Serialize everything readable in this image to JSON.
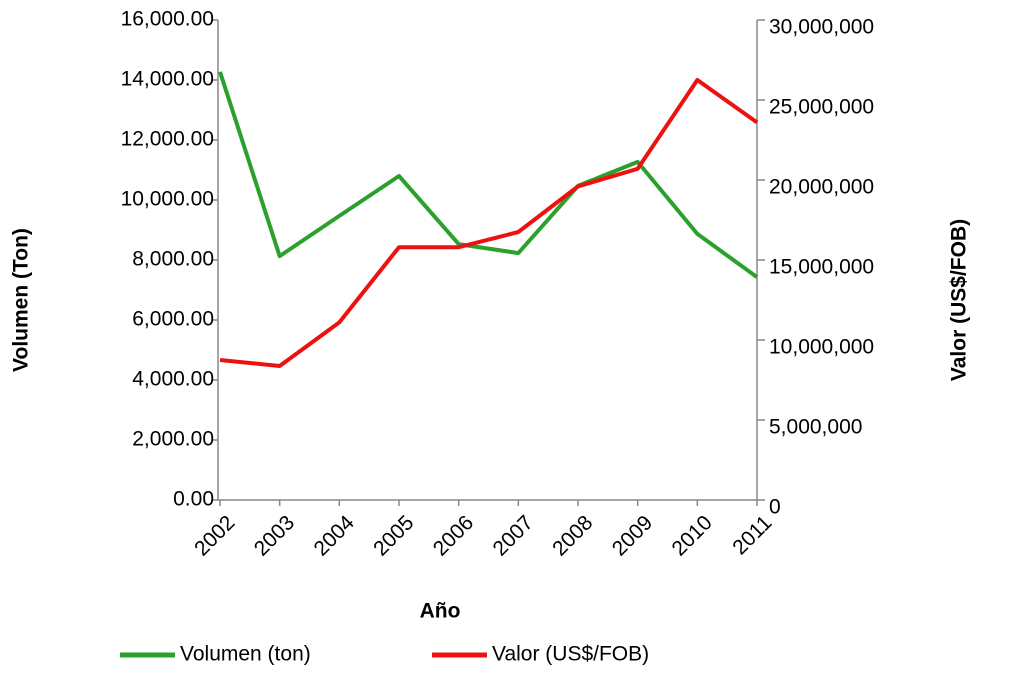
{
  "chart_data": {
    "type": "line",
    "x_label": "Año",
    "y_label": "Volumen (Ton)",
    "y2_label": "Valor (US$/FOB)",
    "categories": [
      "2002",
      "2003",
      "2004",
      "2005",
      "2006",
      "2007",
      "2008",
      "2009",
      "2010",
      "2011"
    ],
    "series": [
      {
        "name": "Volumen (ton)",
        "color": "#2ca02c",
        "values": [
          14270,
          8130,
          9470,
          10800,
          8530,
          8230,
          10470,
          11270,
          8870,
          7430
        ]
      },
      {
        "name": "Valor (US$/FOB)",
        "color": "#ee1111",
        "axis": "y2",
        "values": [
          8750000,
          8375000,
          11100000,
          15800000,
          15800000,
          16750000,
          19600000,
          20700000,
          26250000,
          23600000
        ]
      }
    ],
    "ylim": [
      0,
      16000
    ],
    "yticks": [
      {
        "value": 0,
        "label": "0.00"
      },
      {
        "value": 2000,
        "label": "2,000.00"
      },
      {
        "value": 4000,
        "label": "4,000.00"
      },
      {
        "value": 6000,
        "label": "6,000.00"
      },
      {
        "value": 8000,
        "label": "8,000.00"
      },
      {
        "value": 10000,
        "label": "10,000.00"
      },
      {
        "value": 12000,
        "label": "12,000.00"
      },
      {
        "value": 14000,
        "label": "14,000.00"
      },
      {
        "value": 16000,
        "label": "16,000.00"
      }
    ],
    "y2lim": [
      0,
      30000000
    ],
    "y2ticks": [
      0,
      {
        "value": 5000000,
        "label": "5,000,000"
      },
      {
        "value": 10000000,
        "label": "10,000,000"
      },
      {
        "value": 15000000,
        "label": "15,000,000"
      },
      {
        "value": 20000000,
        "label": "20,000,000"
      },
      {
        "value": 25000000,
        "label": "25,000,000"
      },
      {
        "value": 30000000,
        "label": "30,000,000"
      }
    ],
    "legend": "bottom"
  }
}
